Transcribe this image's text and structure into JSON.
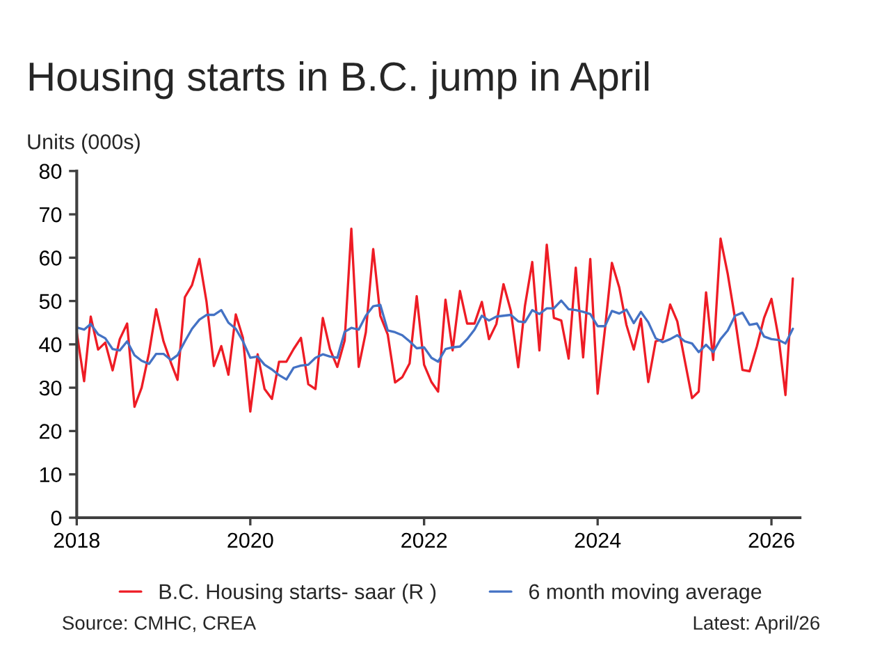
{
  "chart_data": {
    "type": "line",
    "title": "Housing starts in B.C. jump in April",
    "ylabel": "Units (000s)",
    "x": [
      "2018-01",
      "2018-02",
      "2018-03",
      "2018-04",
      "2018-05",
      "2018-06",
      "2018-07",
      "2018-08",
      "2018-09",
      "2018-10",
      "2018-11",
      "2018-12",
      "2019-01",
      "2019-02",
      "2019-03",
      "2019-04",
      "2019-05",
      "2019-06",
      "2019-07",
      "2019-08",
      "2019-09",
      "2019-10",
      "2019-11",
      "2019-12",
      "2020-01",
      "2020-02",
      "2020-03",
      "2020-04",
      "2020-05",
      "2020-06",
      "2020-07",
      "2020-08",
      "2020-09",
      "2020-10",
      "2020-11",
      "2020-12",
      "2021-01",
      "2021-02",
      "2021-03",
      "2021-04",
      "2021-05",
      "2021-06",
      "2021-07",
      "2021-08",
      "2021-09",
      "2021-10",
      "2021-11",
      "2021-12",
      "2022-01",
      "2022-02",
      "2022-03",
      "2022-04",
      "2022-05",
      "2022-06",
      "2022-07",
      "2022-08",
      "2022-09",
      "2022-10",
      "2022-11",
      "2022-12",
      "2023-01",
      "2023-02",
      "2023-03",
      "2023-04",
      "2023-05",
      "2023-06",
      "2023-07",
      "2023-08",
      "2023-09",
      "2023-10",
      "2023-11",
      "2023-12",
      "2024-01",
      "2024-02",
      "2024-03",
      "2024-04",
      "2024-05",
      "2024-06",
      "2024-07",
      "2024-08",
      "2024-09",
      "2024-10",
      "2024-11",
      "2024-12",
      "2025-01",
      "2025-02",
      "2025-03",
      "2025-04",
      "2025-05",
      "2025-06",
      "2025-07",
      "2025-08",
      "2025-09",
      "2025-10",
      "2025-11",
      "2025-12",
      "2026-01",
      "2026-02",
      "2026-03",
      "2026-04"
    ],
    "series": [
      {
        "name": "B.C. Housing starts- saar (R )",
        "color": "#ee1c25",
        "values": [
          42.8,
          31.5,
          46.4,
          38.8,
          40.4,
          34,
          41.2,
          44.8,
          25.6,
          30,
          38,
          48.1,
          40.7,
          35.8,
          31.8,
          50.9,
          53.7,
          59.7,
          49.8,
          35,
          39.6,
          33,
          46.9,
          41.5,
          24.5,
          37.7,
          29.7,
          27.4,
          36,
          36,
          38.9,
          41.5,
          30.8,
          29.7,
          46.1,
          38.9,
          34.8,
          40.9,
          66.7,
          34.8,
          42.8,
          62,
          46.6,
          42.3,
          31.2,
          32.4,
          35.6,
          51.1,
          35.3,
          31.3,
          29.1,
          50.3,
          38.6,
          52.3,
          44.8,
          44.8,
          49.8,
          41.2,
          44.7,
          53.9,
          47.7,
          34.7,
          48.8,
          59,
          38.6,
          63,
          46.1,
          45.5,
          36.7,
          57.7,
          37,
          59.7,
          28.6,
          43.6,
          58.8,
          53.1,
          44.5,
          38.8,
          45.9,
          31.3,
          40.7,
          41.2,
          49.2,
          45.3,
          36.4,
          27.6,
          29.1,
          52,
          36.4,
          64.4,
          56.3,
          45.9,
          34.1,
          33.8,
          39.6,
          46.1,
          50.5,
          41.2,
          28.3,
          55.2
        ]
      },
      {
        "name": "6 month moving average",
        "color": "#4472c4",
        "values": [
          43.9,
          43.4,
          44.7,
          42.3,
          41.4,
          38.9,
          38.6,
          40.7,
          37.5,
          36.2,
          35.5,
          37.8,
          37.8,
          36.4,
          37.5,
          40.7,
          43.6,
          45.7,
          46.8,
          46.8,
          47.9,
          45,
          43.6,
          40.7,
          36.9,
          37.2,
          35.3,
          34.2,
          32.9,
          31.9,
          34.6,
          35.1,
          35.3,
          36.9,
          37.7,
          37.2,
          36.9,
          42.9,
          43.8,
          43.4,
          46.6,
          48.8,
          49.1,
          43.2,
          42.8,
          42.1,
          40.7,
          39.1,
          39.3,
          36.9,
          36,
          38.9,
          39.3,
          39.5,
          41.2,
          43.4,
          46.6,
          45.5,
          46.4,
          46.6,
          46.8,
          45.3,
          45.1,
          47.9,
          47,
          48.3,
          48.3,
          50.1,
          48.1,
          47.9,
          47.5,
          47,
          44.2,
          44.2,
          47.7,
          47.1,
          48,
          44.9,
          47.5,
          45.1,
          41.4,
          40.5,
          41.2,
          42.1,
          40.7,
          40.2,
          38.2,
          39.9,
          38.2,
          41.2,
          43.2,
          46.6,
          47.3,
          44.5,
          44.8,
          41.8,
          41.2,
          41,
          40.2,
          43.6
        ]
      }
    ],
    "xlim": [
      "2018-01",
      "2026-05"
    ],
    "xticks": [
      "2018",
      "2020",
      "2022",
      "2024",
      "2026"
    ],
    "ylim": [
      0,
      80
    ],
    "yticks": [
      0,
      10,
      20,
      30,
      40,
      50,
      60,
      70,
      80
    ],
    "grid": false,
    "legend": "bottom",
    "line_style": "solid",
    "marker": "none",
    "annotations": [
      "Source: CMHC, CREA",
      "Latest: April/26"
    ]
  }
}
